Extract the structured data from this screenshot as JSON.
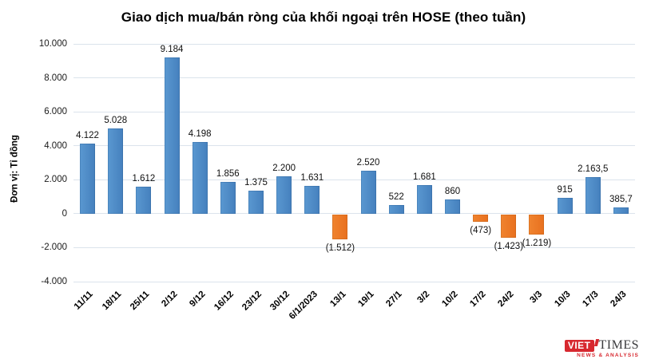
{
  "chart_data": {
    "type": "bar",
    "title": "Giao dịch mua/bán ròng của khối ngoại trên HOSE (theo tuần)",
    "ylabel": "Đơn vị: Tỉ đồng",
    "categories": [
      "11/11",
      "18/11",
      "25/11",
      "2/12",
      "9/12",
      "16/12",
      "23/12",
      "30/12",
      "6/1/2023",
      "13/1",
      "19/1",
      "27/1",
      "3/2",
      "10/2",
      "17/2",
      "24/2",
      "3/3",
      "10/3",
      "17/3",
      "24/3"
    ],
    "values": [
      4122,
      5028,
      1612,
      9184,
      4198,
      1856,
      1375,
      2200,
      1631,
      -1512,
      2520,
      522,
      1681,
      860,
      -473,
      -1423,
      -1219,
      915,
      2163.5,
      385.7
    ],
    "value_labels": [
      "4.122",
      "5.028",
      "1.612",
      "9.184",
      "4.198",
      "1.856",
      "1.375",
      "2.200",
      "1.631",
      "(1.512)",
      "2.520",
      "522",
      "1.681",
      "860",
      "(473)",
      "(1.423)",
      "(1.219)",
      "915",
      "2.163,5",
      "385,7"
    ],
    "y_ticks": [
      10000,
      8000,
      6000,
      4000,
      2000,
      0,
      -2000,
      -4000
    ],
    "y_tick_labels": [
      "10.000",
      "8.000",
      "6.000",
      "4.000",
      "2.000",
      "0",
      "-2.000",
      "-4.000"
    ],
    "ylim": [
      -4000,
      10000
    ],
    "grid": true,
    "legend": "none",
    "colors": {
      "positive": "#4c8bc9",
      "negative": "#ee7d30",
      "gridline": "#dbe3ec"
    }
  },
  "logo": {
    "viet": "VIET",
    "times": "TIMES",
    "tagline": "NEWS & ANALYSIS",
    "brand_red": "#d7282f"
  }
}
